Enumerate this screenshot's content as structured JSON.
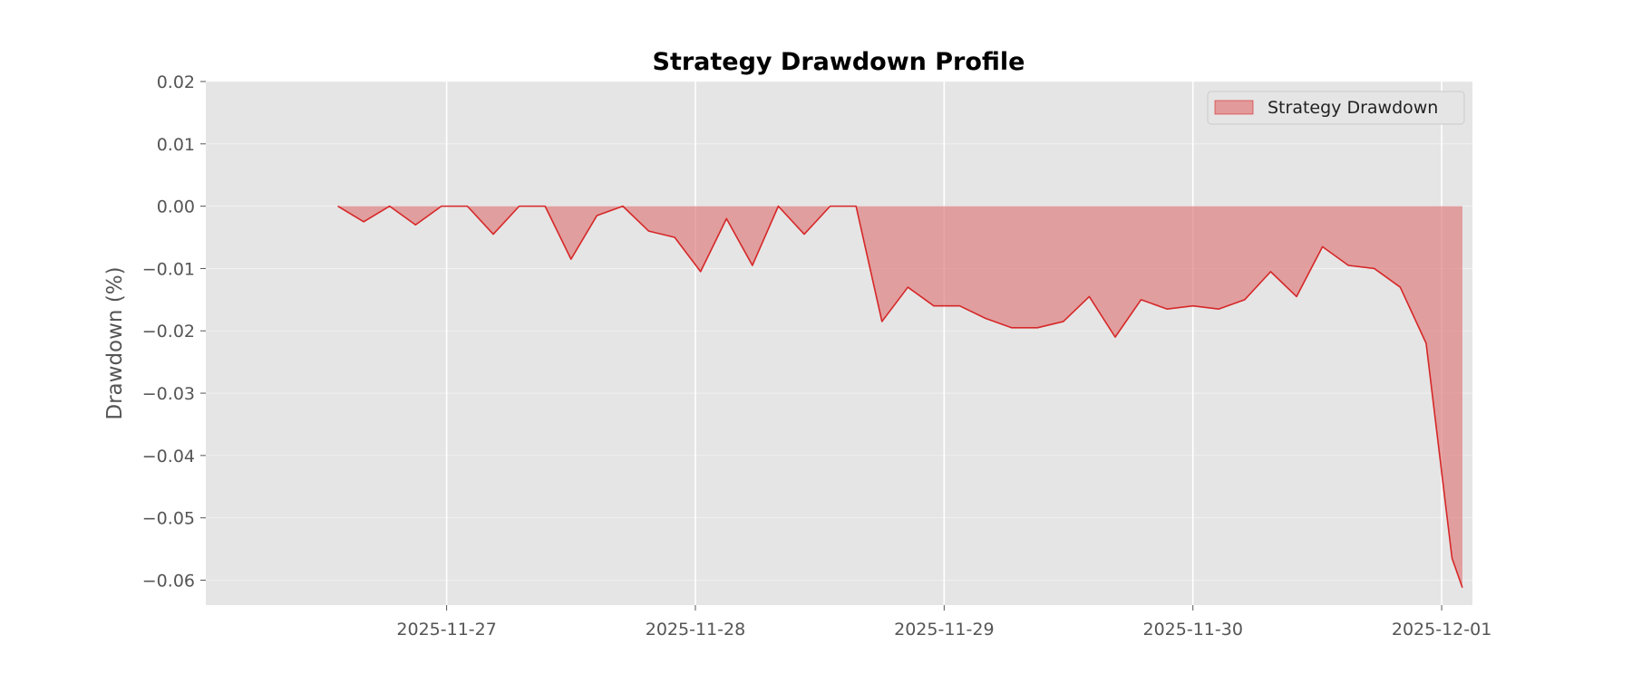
{
  "chart_data": {
    "type": "area",
    "title": "Strategy Drawdown Profile",
    "xlabel": "",
    "ylabel": "Drawdown (%)",
    "ylim": [
      -0.064,
      0.02
    ],
    "xlim": [
      "2025-11-26 00:46",
      "2025-12-01 02:58"
    ],
    "yticks": [
      "0.02",
      "0.01",
      "0.00",
      "−0.01",
      "−0.02",
      "−0.03",
      "−0.04",
      "−0.05",
      "−0.06"
    ],
    "ytick_values": [
      0.02,
      0.01,
      0.0,
      -0.01,
      -0.02,
      -0.03,
      -0.04,
      -0.05,
      -0.06
    ],
    "xticks": [
      "2025-11-27",
      "2025-11-28",
      "2025-11-29",
      "2025-11-30",
      "2025-12-01"
    ],
    "xtick_values": [
      "2025-11-27 00:00",
      "2025-11-28 00:00",
      "2025-11-29 00:00",
      "2025-11-30 00:00",
      "2025-12-01 00:00"
    ],
    "grid": true,
    "legend_position": "top-right",
    "colors": {
      "line": "#d62728",
      "fill": "#e08080",
      "background": "#e5e5e5",
      "grid": "#ffffff"
    },
    "series": [
      {
        "name": "Strategy Drawdown",
        "x": [
          "2025-11-26 13:30",
          "2025-11-26 16:00",
          "2025-11-26 18:30",
          "2025-11-26 21:00",
          "2025-11-26 23:30",
          "2025-11-27 02:00",
          "2025-11-27 04:30",
          "2025-11-27 07:00",
          "2025-11-27 09:30",
          "2025-11-27 12:00",
          "2025-11-27 14:30",
          "2025-11-27 17:00",
          "2025-11-27 19:30",
          "2025-11-27 22:00",
          "2025-11-28 00:30",
          "2025-11-28 03:00",
          "2025-11-28 05:30",
          "2025-11-28 08:00",
          "2025-11-28 10:30",
          "2025-11-28 13:00",
          "2025-11-28 15:30",
          "2025-11-28 18:00",
          "2025-11-28 20:30",
          "2025-11-28 23:00",
          "2025-11-29 01:30",
          "2025-11-29 04:00",
          "2025-11-29 06:30",
          "2025-11-29 09:00",
          "2025-11-29 11:30",
          "2025-11-29 14:00",
          "2025-11-29 16:30",
          "2025-11-29 19:00",
          "2025-11-29 21:30",
          "2025-11-30 00:00",
          "2025-11-30 02:30",
          "2025-11-30 05:00",
          "2025-11-30 07:30",
          "2025-11-30 10:00",
          "2025-11-30 12:30",
          "2025-11-30 15:00",
          "2025-11-30 17:30",
          "2025-11-30 20:00",
          "2025-11-30 22:30",
          "2025-12-01 01:00",
          "2025-12-01 02:00"
        ],
        "values": [
          0.0,
          -0.0025,
          0.0,
          -0.003,
          0.0,
          0.0,
          -0.0045,
          0.0,
          0.0,
          -0.0085,
          -0.0015,
          0.0,
          -0.004,
          -0.005,
          -0.0105,
          -0.002,
          -0.0095,
          0.0,
          -0.0045,
          0.0,
          0.0,
          -0.0185,
          -0.013,
          -0.016,
          -0.016,
          -0.018,
          -0.0195,
          -0.0195,
          -0.0185,
          -0.0145,
          -0.021,
          -0.015,
          -0.0165,
          -0.016,
          -0.0165,
          -0.015,
          -0.0105,
          -0.0145,
          -0.0065,
          -0.0095,
          -0.01,
          -0.013,
          -0.022,
          -0.0565,
          -0.0612
        ]
      }
    ]
  }
}
